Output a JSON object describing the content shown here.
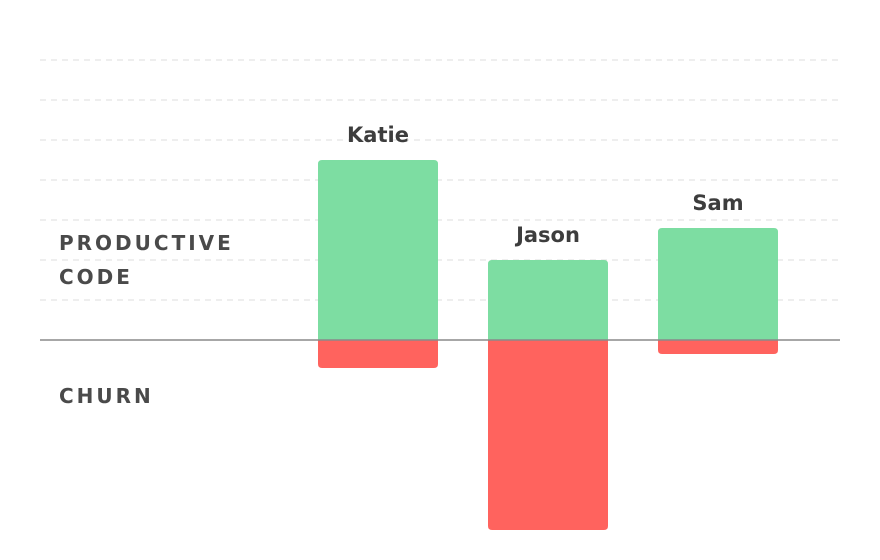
{
  "chart_data": {
    "type": "bar",
    "stacked_diverging": true,
    "categories": [
      "Katie",
      "Jason",
      "Sam"
    ],
    "series": [
      {
        "name": "PRODUCTIVE CODE",
        "values": [
          9,
          4,
          5.6
        ],
        "color": "#7ddda2"
      },
      {
        "name": "CHURN",
        "values": [
          -1.4,
          -9.5,
          -0.7
        ],
        "color": "#ff635e"
      }
    ],
    "ylim": [
      -10.5,
      14
    ],
    "grid": true,
    "baseline": 0
  },
  "labels": {
    "productive_line1": "PRODUCTIVE",
    "productive_line2": "CODE",
    "churn": "CHURN"
  }
}
